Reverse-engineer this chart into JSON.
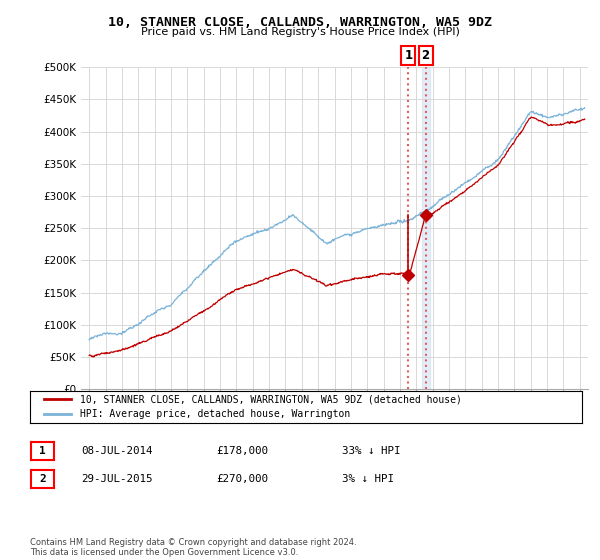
{
  "title": "10, STANNER CLOSE, CALLANDS, WARRINGTON, WA5 9DZ",
  "subtitle": "Price paid vs. HM Land Registry's House Price Index (HPI)",
  "ylabel_ticks": [
    "£0",
    "£50K",
    "£100K",
    "£150K",
    "£200K",
    "£250K",
    "£300K",
    "£350K",
    "£400K",
    "£450K",
    "£500K"
  ],
  "ytick_values": [
    0,
    50000,
    100000,
    150000,
    200000,
    250000,
    300000,
    350000,
    400000,
    450000,
    500000
  ],
  "ylim": [
    0,
    500000
  ],
  "xlim_start": 1994.5,
  "xlim_end": 2025.5,
  "hpi_color": "#7bb3d9",
  "price_color": "#c00000",
  "annotation1_date": 2014.52,
  "annotation1_price": 178000,
  "annotation2_date": 2015.57,
  "annotation2_price": 270000,
  "vline1_color": "#e06060",
  "vline2_color": "#aac8e8",
  "legend_label1": "10, STANNER CLOSE, CALLANDS, WARRINGTON, WA5 9DZ (detached house)",
  "legend_label2": "HPI: Average price, detached house, Warrington",
  "table_row1": [
    "1",
    "08-JUL-2014",
    "£178,000",
    "33% ↓ HPI"
  ],
  "table_row2": [
    "2",
    "29-JUL-2015",
    "£270,000",
    "3% ↓ HPI"
  ],
  "footnote": "Contains HM Land Registry data © Crown copyright and database right 2024.\nThis data is licensed under the Open Government Licence v3.0.",
  "background_color": "#ffffff",
  "grid_color": "#d8d8d8"
}
